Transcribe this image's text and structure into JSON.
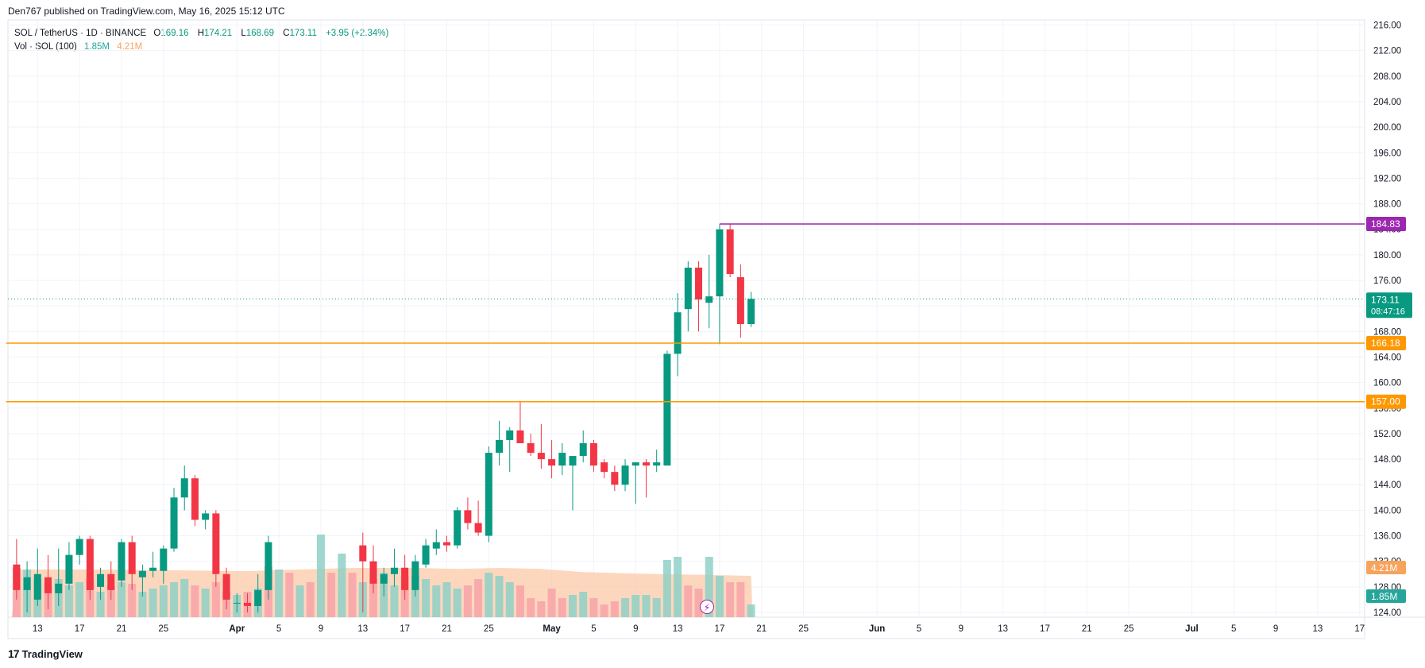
{
  "header": {
    "published_caption": "Den767 published on TradingView.com, May 16, 2025 15:12 UTC"
  },
  "legend": {
    "symbol": "SOL / TetherUS · 1D · BINANCE",
    "open_label": "O",
    "open": "169.16",
    "high_label": "H",
    "high": "174.21",
    "low_label": "L",
    "low": "168.69",
    "close_label": "C",
    "close": "173.11",
    "change": "+3.95 (+2.34%)",
    "volume_label": "Vol · SOL (100)",
    "volume_value": "1.85M",
    "volume_ma": "4.21M"
  },
  "brand": {
    "logo_text": "17",
    "name": "TradingView"
  },
  "colors": {
    "up": "#089981",
    "down": "#f23645",
    "vol_up": "#8fd0c7",
    "vol_down": "#f8a3a9",
    "vol_ma_fill": "#fbc9a8",
    "level_orange": "#ff9800",
    "level_purple": "#9c27b0",
    "price_label": "#089981",
    "grid": "#f0f3fa",
    "axis_text": "#131722"
  },
  "chart_data": {
    "type": "candlestick",
    "instrument": "SOL / TetherUS",
    "timeframe": "1D",
    "exchange": "BINANCE",
    "y_axis": {
      "range": [
        124,
        216
      ],
      "ticks": [
        "124.00",
        "128.00",
        "132.00",
        "136.00",
        "140.00",
        "144.00",
        "148.00",
        "152.00",
        "156.00",
        "160.00",
        "164.00",
        "168.00",
        "172.00",
        "176.00",
        "180.00",
        "184.00",
        "188.00",
        "192.00",
        "196.00",
        "200.00",
        "204.00",
        "208.00",
        "212.00",
        "216.00"
      ]
    },
    "x_axis": {
      "ticks": [
        {
          "label": "13",
          "day": 0
        },
        {
          "label": "17",
          "day": 4
        },
        {
          "label": "21",
          "day": 8
        },
        {
          "label": "25",
          "day": 12
        },
        {
          "label": "Apr",
          "day": 19,
          "bold": true
        },
        {
          "label": "5",
          "day": 23
        },
        {
          "label": "9",
          "day": 27
        },
        {
          "label": "13",
          "day": 31
        },
        {
          "label": "17",
          "day": 35
        },
        {
          "label": "21",
          "day": 39
        },
        {
          "label": "25",
          "day": 43
        },
        {
          "label": "May",
          "day": 49,
          "bold": true
        },
        {
          "label": "5",
          "day": 53
        },
        {
          "label": "9",
          "day": 57
        },
        {
          "label": "13",
          "day": 61
        },
        {
          "label": "17",
          "day": 65
        },
        {
          "label": "21",
          "day": 69
        },
        {
          "label": "25",
          "day": 73
        },
        {
          "label": "Jun",
          "day": 80,
          "bold": true
        },
        {
          "label": "5",
          "day": 84
        },
        {
          "label": "9",
          "day": 88
        },
        {
          "label": "13",
          "day": 92
        },
        {
          "label": "17",
          "day": 96
        },
        {
          "label": "21",
          "day": 100
        },
        {
          "label": "25",
          "day": 104
        },
        {
          "label": "Jul",
          "day": 110,
          "bold": true
        },
        {
          "label": "5",
          "day": 114
        },
        {
          "label": "9",
          "day": 118
        },
        {
          "label": "13",
          "day": 122
        },
        {
          "label": "17",
          "day": 126
        }
      ]
    },
    "candles": [
      {
        "d": -2,
        "o": 131.5,
        "h": 135.5,
        "l": 126.0,
        "c": 127.5
      },
      {
        "d": -1,
        "o": 127.5,
        "h": 132.0,
        "l": 124.0,
        "c": 129.5
      },
      {
        "d": 0,
        "o": 126.0,
        "h": 134.0,
        "l": 125.0,
        "c": 130.0
      },
      {
        "d": 1,
        "o": 129.5,
        "h": 133.0,
        "l": 124.5,
        "c": 127.0
      },
      {
        "d": 2,
        "o": 127.0,
        "h": 134.0,
        "l": 125.0,
        "c": 128.5
      },
      {
        "d": 3,
        "o": 128.5,
        "h": 135.0,
        "l": 127.5,
        "c": 133.0
      },
      {
        "d": 4,
        "o": 133.0,
        "h": 136.0,
        "l": 131.5,
        "c": 135.5
      },
      {
        "d": 5,
        "o": 135.5,
        "h": 136.0,
        "l": 126.0,
        "c": 127.5
      },
      {
        "d": 6,
        "o": 128.0,
        "h": 131.0,
        "l": 126.0,
        "c": 130.0
      },
      {
        "d": 7,
        "o": 130.0,
        "h": 132.0,
        "l": 126.0,
        "c": 127.5
      },
      {
        "d": 8,
        "o": 129.0,
        "h": 135.5,
        "l": 128.0,
        "c": 135.0
      },
      {
        "d": 9,
        "o": 135.0,
        "h": 136.0,
        "l": 127.5,
        "c": 130.0
      },
      {
        "d": 10,
        "o": 129.5,
        "h": 131.5,
        "l": 126.5,
        "c": 130.5
      },
      {
        "d": 11,
        "o": 130.5,
        "h": 133.5,
        "l": 129.5,
        "c": 131.0
      },
      {
        "d": 12,
        "o": 130.5,
        "h": 134.5,
        "l": 128.5,
        "c": 134.0
      },
      {
        "d": 13,
        "o": 134.0,
        "h": 143.5,
        "l": 133.5,
        "c": 142.0
      },
      {
        "d": 14,
        "o": 142.0,
        "h": 147.0,
        "l": 140.0,
        "c": 145.0
      },
      {
        "d": 15,
        "o": 145.0,
        "h": 145.5,
        "l": 137.5,
        "c": 138.5
      },
      {
        "d": 16,
        "o": 138.5,
        "h": 140.0,
        "l": 137.0,
        "c": 139.5
      },
      {
        "d": 17,
        "o": 139.5,
        "h": 140.0,
        "l": 128.0,
        "c": 130.0
      },
      {
        "d": 18,
        "o": 130.0,
        "h": 131.0,
        "l": 124.5,
        "c": 126.0
      },
      {
        "d": 19,
        "o": 125.5,
        "h": 127.0,
        "l": 124.0,
        "c": 125.5
      },
      {
        "d": 20,
        "o": 125.5,
        "h": 127.0,
        "l": 124.0,
        "c": 125.0
      },
      {
        "d": 21,
        "o": 125.0,
        "h": 130.0,
        "l": 124.0,
        "c": 127.5
      },
      {
        "d": 22,
        "o": 127.5,
        "h": 136.0,
        "l": 126.0,
        "c": 135.0
      },
      {
        "d": 31,
        "o": 134.5,
        "h": 136.5,
        "l": 124.0,
        "c": 132.0
      },
      {
        "d": 32,
        "o": 132.0,
        "h": 134.5,
        "l": 127.0,
        "c": 128.5
      },
      {
        "d": 33,
        "o": 128.5,
        "h": 131.0,
        "l": 126.5,
        "c": 130.0
      },
      {
        "d": 34,
        "o": 130.0,
        "h": 134.0,
        "l": 128.0,
        "c": 131.0
      },
      {
        "d": 35,
        "o": 131.0,
        "h": 133.0,
        "l": 126.0,
        "c": 127.5
      },
      {
        "d": 36,
        "o": 127.5,
        "h": 133.0,
        "l": 126.5,
        "c": 132.0
      },
      {
        "d": 37,
        "o": 131.5,
        "h": 135.5,
        "l": 131.0,
        "c": 134.5
      },
      {
        "d": 38,
        "o": 134.0,
        "h": 137.0,
        "l": 133.0,
        "c": 135.0
      },
      {
        "d": 39,
        "o": 135.0,
        "h": 136.0,
        "l": 133.5,
        "c": 134.5
      },
      {
        "d": 40,
        "o": 134.5,
        "h": 140.5,
        "l": 134.0,
        "c": 140.0
      },
      {
        "d": 41,
        "o": 140.0,
        "h": 142.0,
        "l": 137.0,
        "c": 138.0
      },
      {
        "d": 42,
        "o": 138.0,
        "h": 141.5,
        "l": 136.0,
        "c": 136.5
      },
      {
        "d": 43,
        "o": 136.0,
        "h": 150.0,
        "l": 135.0,
        "c": 149.0
      },
      {
        "d": 44,
        "o": 149.0,
        "h": 154.0,
        "l": 147.0,
        "c": 151.0
      },
      {
        "d": 45,
        "o": 151.0,
        "h": 153.0,
        "l": 146.0,
        "c": 152.5
      },
      {
        "d": 46,
        "o": 152.5,
        "h": 157.0,
        "l": 150.5,
        "c": 150.5
      },
      {
        "d": 47,
        "o": 150.5,
        "h": 152.0,
        "l": 148.5,
        "c": 149.0
      },
      {
        "d": 48,
        "o": 149.0,
        "h": 153.5,
        "l": 146.5,
        "c": 148.0
      },
      {
        "d": 49,
        "o": 148.0,
        "h": 151.0,
        "l": 145.0,
        "c": 147.0
      },
      {
        "d": 50,
        "o": 147.0,
        "h": 150.5,
        "l": 145.5,
        "c": 149.0
      },
      {
        "d": 51,
        "o": 147.0,
        "h": 148.5,
        "l": 140.0,
        "c": 148.5
      },
      {
        "d": 52,
        "o": 148.5,
        "h": 152.5,
        "l": 147.5,
        "c": 150.5
      },
      {
        "d": 53,
        "o": 150.5,
        "h": 151.0,
        "l": 146.0,
        "c": 147.0
      },
      {
        "d": 54,
        "o": 147.5,
        "h": 148.0,
        "l": 145.0,
        "c": 146.0
      },
      {
        "d": 55,
        "o": 146.0,
        "h": 147.0,
        "l": 143.0,
        "c": 144.0
      },
      {
        "d": 56,
        "o": 144.0,
        "h": 148.0,
        "l": 143.0,
        "c": 147.0
      },
      {
        "d": 57,
        "o": 147.0,
        "h": 147.5,
        "l": 141.0,
        "c": 147.5
      },
      {
        "d": 58,
        "o": 147.5,
        "h": 148.0,
        "l": 142.0,
        "c": 147.0
      },
      {
        "d": 59,
        "o": 147.0,
        "h": 149.5,
        "l": 146.0,
        "c": 147.5
      },
      {
        "d": 60,
        "o": 147.0,
        "h": 165.0,
        "l": 147.0,
        "c": 164.5
      },
      {
        "d": 61,
        "o": 164.5,
        "h": 174.0,
        "l": 161.0,
        "c": 171.0
      },
      {
        "d": 62,
        "o": 171.5,
        "h": 179.0,
        "l": 168.0,
        "c": 178.0
      },
      {
        "d": 63,
        "o": 178.0,
        "h": 179.0,
        "l": 168.0,
        "c": 173.0
      },
      {
        "d": 64,
        "o": 172.5,
        "h": 180.0,
        "l": 168.5,
        "c": 173.5
      },
      {
        "d": 65,
        "o": 173.5,
        "h": 184.8,
        "l": 166.0,
        "c": 184.0
      },
      {
        "d": 66,
        "o": 184.0,
        "h": 184.83,
        "l": 176.5,
        "c": 177.0
      },
      {
        "d": 67,
        "o": 176.5,
        "h": 178.5,
        "l": 167.0,
        "c": 169.16
      },
      {
        "d": 68,
        "o": 169.16,
        "h": 174.21,
        "l": 168.69,
        "c": 173.11
      }
    ],
    "volume": {
      "max_bar": "4.21M",
      "bars": [
        {
          "d": -2,
          "v": 1.55,
          "up": false
        },
        {
          "d": -1,
          "v": 1.5,
          "up": true
        },
        {
          "d": 0,
          "v": 1.2,
          "up": true
        },
        {
          "d": 1,
          "v": 1.0,
          "up": false
        },
        {
          "d": 2,
          "v": 1.2,
          "up": true
        },
        {
          "d": 3,
          "v": 1.0,
          "up": true
        },
        {
          "d": 4,
          "v": 1.1,
          "up": true
        },
        {
          "d": 5,
          "v": 1.2,
          "up": false
        },
        {
          "d": 6,
          "v": 0.8,
          "up": true
        },
        {
          "d": 7,
          "v": 1.0,
          "up": false
        },
        {
          "d": 8,
          "v": 1.1,
          "up": true
        },
        {
          "d": 9,
          "v": 1.05,
          "up": false
        },
        {
          "d": 10,
          "v": 0.8,
          "up": true
        },
        {
          "d": 11,
          "v": 0.9,
          "up": true
        },
        {
          "d": 12,
          "v": 1.0,
          "up": true
        },
        {
          "d": 13,
          "v": 1.1,
          "up": true
        },
        {
          "d": 14,
          "v": 1.2,
          "up": true
        },
        {
          "d": 15,
          "v": 1.0,
          "up": false
        },
        {
          "d": 16,
          "v": 0.9,
          "up": true
        },
        {
          "d": 17,
          "v": 1.1,
          "up": false
        },
        {
          "d": 18,
          "v": 0.8,
          "up": false
        },
        {
          "d": 19,
          "v": 0.7,
          "up": true
        },
        {
          "d": 20,
          "v": 0.8,
          "up": false
        },
        {
          "d": 21,
          "v": 0.9,
          "up": true
        },
        {
          "d": 22,
          "v": 1.6,
          "up": false
        },
        {
          "d": 23,
          "v": 1.5,
          "up": true
        },
        {
          "d": 24,
          "v": 1.4,
          "up": false
        },
        {
          "d": 25,
          "v": 1.0,
          "up": true
        },
        {
          "d": 26,
          "v": 1.1,
          "up": false
        },
        {
          "d": 27,
          "v": 2.6,
          "up": true
        },
        {
          "d": 28,
          "v": 1.4,
          "up": false
        },
        {
          "d": 29,
          "v": 2.0,
          "up": true
        },
        {
          "d": 30,
          "v": 1.4,
          "up": false
        },
        {
          "d": 31,
          "v": 1.1,
          "up": true
        },
        {
          "d": 32,
          "v": 1.2,
          "up": false
        },
        {
          "d": 33,
          "v": 1.4,
          "up": true
        },
        {
          "d": 34,
          "v": 1.0,
          "up": true
        },
        {
          "d": 35,
          "v": 1.3,
          "up": false
        },
        {
          "d": 36,
          "v": 1.3,
          "up": true
        },
        {
          "d": 37,
          "v": 1.2,
          "up": true
        },
        {
          "d": 38,
          "v": 1.0,
          "up": true
        },
        {
          "d": 39,
          "v": 1.1,
          "up": true
        },
        {
          "d": 40,
          "v": 0.9,
          "up": true
        },
        {
          "d": 41,
          "v": 1.0,
          "up": false
        },
        {
          "d": 42,
          "v": 1.2,
          "up": false
        },
        {
          "d": 43,
          "v": 1.4,
          "up": true
        },
        {
          "d": 44,
          "v": 1.3,
          "up": true
        },
        {
          "d": 45,
          "v": 1.1,
          "up": true
        },
        {
          "d": 46,
          "v": 1.0,
          "up": false
        },
        {
          "d": 47,
          "v": 0.6,
          "up": false
        },
        {
          "d": 48,
          "v": 0.5,
          "up": false
        },
        {
          "d": 49,
          "v": 0.9,
          "up": false
        },
        {
          "d": 50,
          "v": 0.6,
          "up": false
        },
        {
          "d": 51,
          "v": 0.7,
          "up": true
        },
        {
          "d": 52,
          "v": 0.8,
          "up": true
        },
        {
          "d": 53,
          "v": 0.6,
          "up": false
        },
        {
          "d": 54,
          "v": 0.4,
          "up": false
        },
        {
          "d": 55,
          "v": 0.5,
          "up": false
        },
        {
          "d": 56,
          "v": 0.6,
          "up": true
        },
        {
          "d": 57,
          "v": 0.7,
          "up": true
        },
        {
          "d": 58,
          "v": 0.7,
          "up": true
        },
        {
          "d": 59,
          "v": 0.6,
          "up": true
        },
        {
          "d": 60,
          "v": 1.8,
          "up": true
        },
        {
          "d": 61,
          "v": 1.9,
          "up": true
        },
        {
          "d": 62,
          "v": 1.0,
          "up": false
        },
        {
          "d": 63,
          "v": 0.9,
          "up": false
        },
        {
          "d": 64,
          "v": 1.9,
          "up": true
        },
        {
          "d": 65,
          "v": 1.3,
          "up": true
        },
        {
          "d": 66,
          "v": 1.1,
          "up": false
        },
        {
          "d": 67,
          "v": 1.1,
          "up": false
        },
        {
          "d": 68,
          "v": 0.4,
          "up": true
        }
      ],
      "ma_values": [
        {
          "d": -2,
          "v": 1.5
        },
        {
          "d": 5,
          "v": 1.5
        },
        {
          "d": 12,
          "v": 1.48
        },
        {
          "d": 20,
          "v": 1.45
        },
        {
          "d": 25,
          "v": 1.5
        },
        {
          "d": 30,
          "v": 1.55
        },
        {
          "d": 36,
          "v": 1.55
        },
        {
          "d": 40,
          "v": 1.52
        },
        {
          "d": 44,
          "v": 1.55
        },
        {
          "d": 48,
          "v": 1.52
        },
        {
          "d": 52,
          "v": 1.42
        },
        {
          "d": 56,
          "v": 1.38
        },
        {
          "d": 60,
          "v": 1.35
        },
        {
          "d": 64,
          "v": 1.33
        },
        {
          "d": 68,
          "v": 1.3
        }
      ]
    },
    "levels": [
      {
        "price": 184.83,
        "label": "184.83",
        "color": "#9c27b0",
        "from_day": 65
      },
      {
        "price": 166.18,
        "label": "166.18",
        "color": "#ff9800",
        "from_day": -3
      },
      {
        "price": 157.0,
        "label": "157.00",
        "color": "#ff9800",
        "from_day": -3
      }
    ],
    "last_price": {
      "price": 173.11,
      "label": "173.11",
      "countdown": "08:47:16"
    },
    "volume_labels": [
      {
        "label": "4.21M",
        "color": "#f7a35c"
      },
      {
        "label": "1.85M",
        "color": "#26a69a"
      }
    ]
  }
}
